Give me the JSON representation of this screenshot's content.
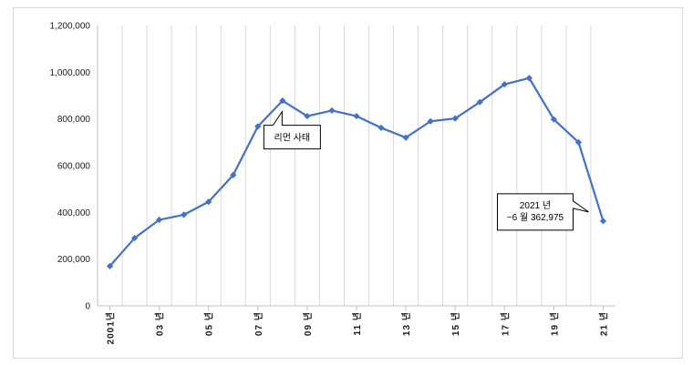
{
  "chart_data": {
    "type": "line",
    "title": "",
    "xlabel": "",
    "ylabel": "",
    "ylim": [
      0,
      1200000
    ],
    "yticks": [
      0,
      200000,
      400000,
      600000,
      800000,
      1000000,
      1200000
    ],
    "ytick_labels": [
      "0",
      "200,000",
      "400,000",
      "600,000",
      "800,000",
      "1,000,000",
      "1,200,000"
    ],
    "grid": "vertical",
    "legend": "none",
    "line_color": "#4472c4",
    "x": [
      "2001년",
      "2002",
      "2003",
      "2004",
      "2005",
      "2006",
      "2007",
      "2008",
      "2009",
      "2010",
      "2011",
      "2012",
      "2013",
      "2014",
      "2015",
      "2016",
      "2017",
      "2018",
      "2019",
      "2020",
      "2021"
    ],
    "xtick_labels": [
      "2001년",
      "03 년",
      "05 년",
      "07 년",
      "09 년",
      "11 년",
      "13 년",
      "15 년",
      "17 년",
      "19 년",
      "21 년"
    ],
    "series": [
      {
        "values": [
          170000,
          290000,
          368000,
          390000,
          445000,
          560000,
          768000,
          878000,
          812000,
          836000,
          812000,
          762000,
          720000,
          790000,
          802000,
          872000,
          948000,
          975000,
          798000,
          700000,
          362975
        ]
      }
    ],
    "annotations": [
      {
        "text": "리먼 사태",
        "x": "2008"
      },
      {
        "text": "2021 년\n~6 월 362,975",
        "x": "2021"
      }
    ]
  }
}
